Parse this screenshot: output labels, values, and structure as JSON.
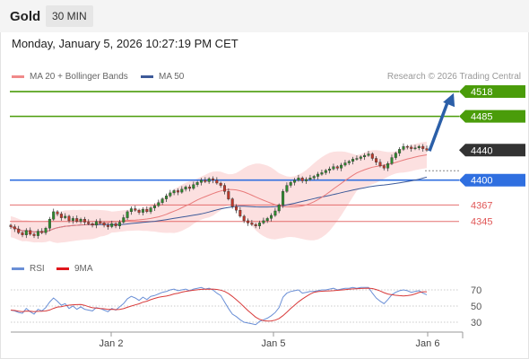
{
  "header": {
    "instrument": "Gold",
    "timeframe": "30 MIN"
  },
  "datetime": "Monday, January 5, 2026 10:27:19 PM CET",
  "legend": {
    "ma20_label": "MA 20 + Bollinger Bands",
    "ma50_label": "MA 50",
    "credit": "Research © 2026 Trading Central"
  },
  "rsi_legend": {
    "rsi_label": "RSI",
    "ma_label": "9MA"
  },
  "colors": {
    "green": "#4a9c0a",
    "blue": "#2f6fe0",
    "red": "#e05757",
    "dark": "#333333",
    "ma20": "#e87a7a",
    "ma50": "#3d5a99",
    "band": "#fbd6d6",
    "candle_up": "#2e8b2e",
    "candle_down": "#c0392b",
    "arrow": "#2b5fa8",
    "rsi": "#6a8fd6",
    "rsi_ma": "#d83a3a"
  },
  "chart_data": [
    {
      "type": "line",
      "title": "Gold",
      "subtitle": "30 MIN",
      "x_ticks": [
        "Jan 2",
        "Jan 5",
        "Jan 6"
      ],
      "price_range": [
        4310,
        4530
      ],
      "levels": [
        {
          "value": 4518,
          "label": "4518",
          "kind": "resistance",
          "color": "#4a9c0a"
        },
        {
          "value": 4485,
          "label": "4485",
          "kind": "resistance",
          "color": "#4a9c0a"
        },
        {
          "value": 4440,
          "label": "4440",
          "kind": "last",
          "color": "#333333"
        },
        {
          "value": 4400,
          "label": "4400",
          "kind": "pivot",
          "color": "#2f6fe0"
        },
        {
          "value": 4367,
          "label": "4367",
          "kind": "support",
          "color": "#e05757"
        },
        {
          "value": 4345,
          "label": "4345",
          "kind": "support",
          "color": "#e05757"
        }
      ],
      "series": [
        {
          "name": "Gold",
          "values": [
            4338,
            4335,
            4330,
            4327,
            4333,
            4328,
            4326,
            4332,
            4330,
            4336,
            4348,
            4358,
            4355,
            4350,
            4352,
            4346,
            4349,
            4345,
            4348,
            4344,
            4342,
            4340,
            4345,
            4343,
            4340,
            4338,
            4342,
            4339,
            4344,
            4350,
            4358,
            4362,
            4360,
            4357,
            4361,
            4358,
            4363,
            4366,
            4370,
            4375,
            4379,
            4383,
            4386,
            4384,
            4388,
            4391,
            4389,
            4394,
            4397,
            4400,
            4398,
            4402,
            4400,
            4396,
            4393,
            4385,
            4375,
            4365,
            4360,
            4352,
            4346,
            4343,
            4341,
            4339,
            4343,
            4346,
            4349,
            4353,
            4359,
            4367,
            4385,
            4393,
            4397,
            4400,
            4403,
            4399,
            4401,
            4403,
            4405,
            4408,
            4410,
            4413,
            4415,
            4418,
            4416,
            4420,
            4423,
            4425,
            4428,
            4429,
            4431,
            4433,
            4435,
            4429,
            4424,
            4419,
            4416,
            4422,
            4430,
            4436,
            4441,
            4445,
            4444,
            4442,
            4443,
            4445,
            4442,
            4440
          ]
        },
        {
          "name": "MA 20"
        },
        {
          "name": "MA 50"
        }
      ]
    },
    {
      "type": "line",
      "title": "RSI",
      "ylim": [
        20,
        80
      ],
      "y_ticks": [
        70,
        50,
        30
      ],
      "series": [
        {
          "name": "RSI",
          "values": [
            45,
            44,
            42,
            41,
            47,
            43,
            40,
            46,
            44,
            48,
            55,
            60,
            56,
            51,
            53,
            47,
            50,
            46,
            49,
            46,
            45,
            44,
            48,
            47,
            45,
            43,
            47,
            45,
            49,
            53,
            59,
            62,
            60,
            57,
            61,
            58,
            62,
            63,
            65,
            67,
            68,
            70,
            71,
            69,
            70,
            71,
            69,
            71,
            72,
            73,
            71,
            72,
            70,
            66,
            63,
            55,
            47,
            40,
            37,
            33,
            30,
            29,
            28,
            27,
            31,
            33,
            35,
            38,
            42,
            48,
            61,
            66,
            68,
            69,
            70,
            66,
            67,
            68,
            68,
            69,
            70,
            70,
            71,
            72,
            70,
            71,
            72,
            72,
            73,
            72,
            73,
            73,
            73,
            66,
            60,
            56,
            53,
            58,
            64,
            67,
            69,
            70,
            69,
            67,
            68,
            69,
            66,
            64
          ]
        },
        {
          "name": "9MA"
        }
      ]
    }
  ]
}
